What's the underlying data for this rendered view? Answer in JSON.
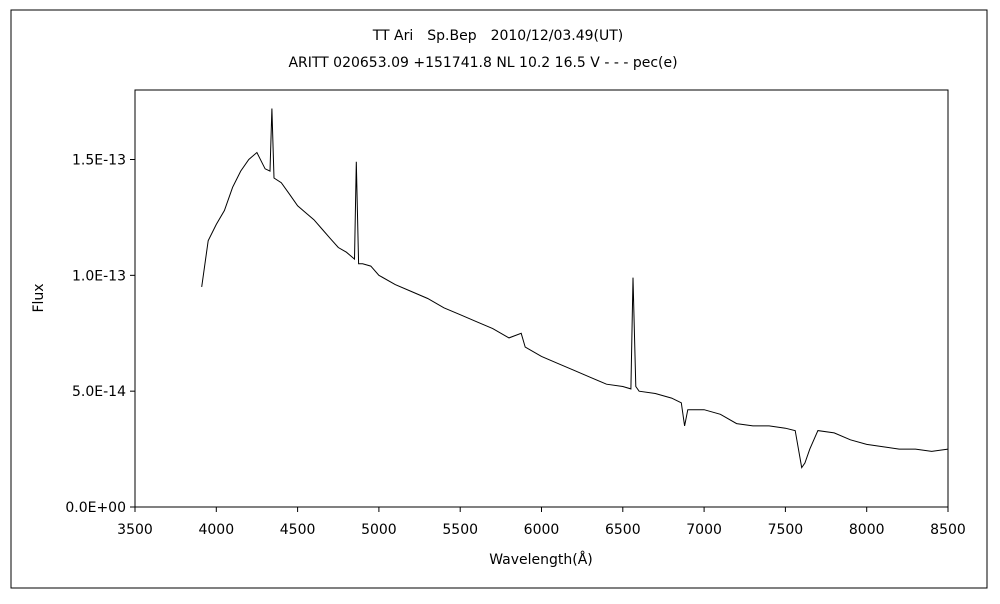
{
  "chart_data": {
    "type": "line",
    "title": "TT Ari　Sp.Bep　2010/12/03.49(UT)",
    "subtitle": "ARITT 020653.09 +151741.8 NL 10.2 16.5 V - - - pec(e)",
    "xlabel": "Wavelength(Å)",
    "ylabel": "Flux",
    "xlim": [
      3500,
      8500
    ],
    "ylim": [
      0,
      1.8e-13
    ],
    "x_ticks": [
      3500,
      4000,
      4500,
      5000,
      5500,
      6000,
      6500,
      7000,
      7500,
      8000,
      8500
    ],
    "x_tick_labels": [
      "3500",
      "4000",
      "4500",
      "5000",
      "5500",
      "6000",
      "6500",
      "7000",
      "7500",
      "8000",
      "8500"
    ],
    "y_ticks": [
      0,
      5e-14,
      1e-13,
      1.5e-13
    ],
    "y_tick_labels": [
      "0.0E+00",
      "5.0E-14",
      "1.0E-13",
      "1.5E-13"
    ],
    "grid": false,
    "legend": "none",
    "line_color": "#000000",
    "series": [
      {
        "x": [
          3910,
          3950,
          4000,
          4050,
          4100,
          4150,
          4200,
          4250,
          4300,
          4330,
          4342,
          4355,
          4400,
          4450,
          4500,
          4550,
          4600,
          4650,
          4700,
          4750,
          4800,
          4850,
          4861,
          4875,
          4900,
          4950,
          5000,
          5100,
          5200,
          5300,
          5400,
          5500,
          5600,
          5700,
          5800,
          5875,
          5900,
          6000,
          6100,
          6200,
          6300,
          6400,
          6500,
          6550,
          6563,
          6580,
          6600,
          6700,
          6800,
          6860,
          6880,
          6900,
          7000,
          7100,
          7200,
          7300,
          7400,
          7500,
          7560,
          7600,
          7620,
          7650,
          7700,
          7800,
          7900,
          8000,
          8100,
          8200,
          8300,
          8400,
          8500
        ],
        "y": [
          9.5e-14,
          1.15e-13,
          1.22e-13,
          1.28e-13,
          1.38e-13,
          1.45e-13,
          1.5e-13,
          1.53e-13,
          1.46e-13,
          1.45e-13,
          1.72e-13,
          1.42e-13,
          1.4e-13,
          1.35e-13,
          1.3e-13,
          1.27e-13,
          1.24e-13,
          1.2e-13,
          1.16e-13,
          1.12e-13,
          1.1e-13,
          1.07e-13,
          1.49e-13,
          1.05e-13,
          1.05e-13,
          1.04e-13,
          1e-13,
          9.6e-14,
          9.3e-14,
          9e-14,
          8.6e-14,
          8.3e-14,
          8e-14,
          7.7e-14,
          7.3e-14,
          7.5e-14,
          6.9e-14,
          6.5e-14,
          6.2e-14,
          5.9e-14,
          5.6e-14,
          5.3e-14,
          5.2e-14,
          5.1e-14,
          9.9e-14,
          5.2e-14,
          5e-14,
          4.9e-14,
          4.7e-14,
          4.5e-14,
          3.5e-14,
          4.2e-14,
          4.2e-14,
          4e-14,
          3.6e-14,
          3.5e-14,
          3.5e-14,
          3.4e-14,
          3.3e-14,
          1.7e-14,
          1.9e-14,
          2.5e-14,
          3.3e-14,
          3.2e-14,
          2.9e-14,
          2.7e-14,
          2.6e-14,
          2.5e-14,
          2.5e-14,
          2.4e-14,
          2.5e-14
        ]
      }
    ]
  }
}
